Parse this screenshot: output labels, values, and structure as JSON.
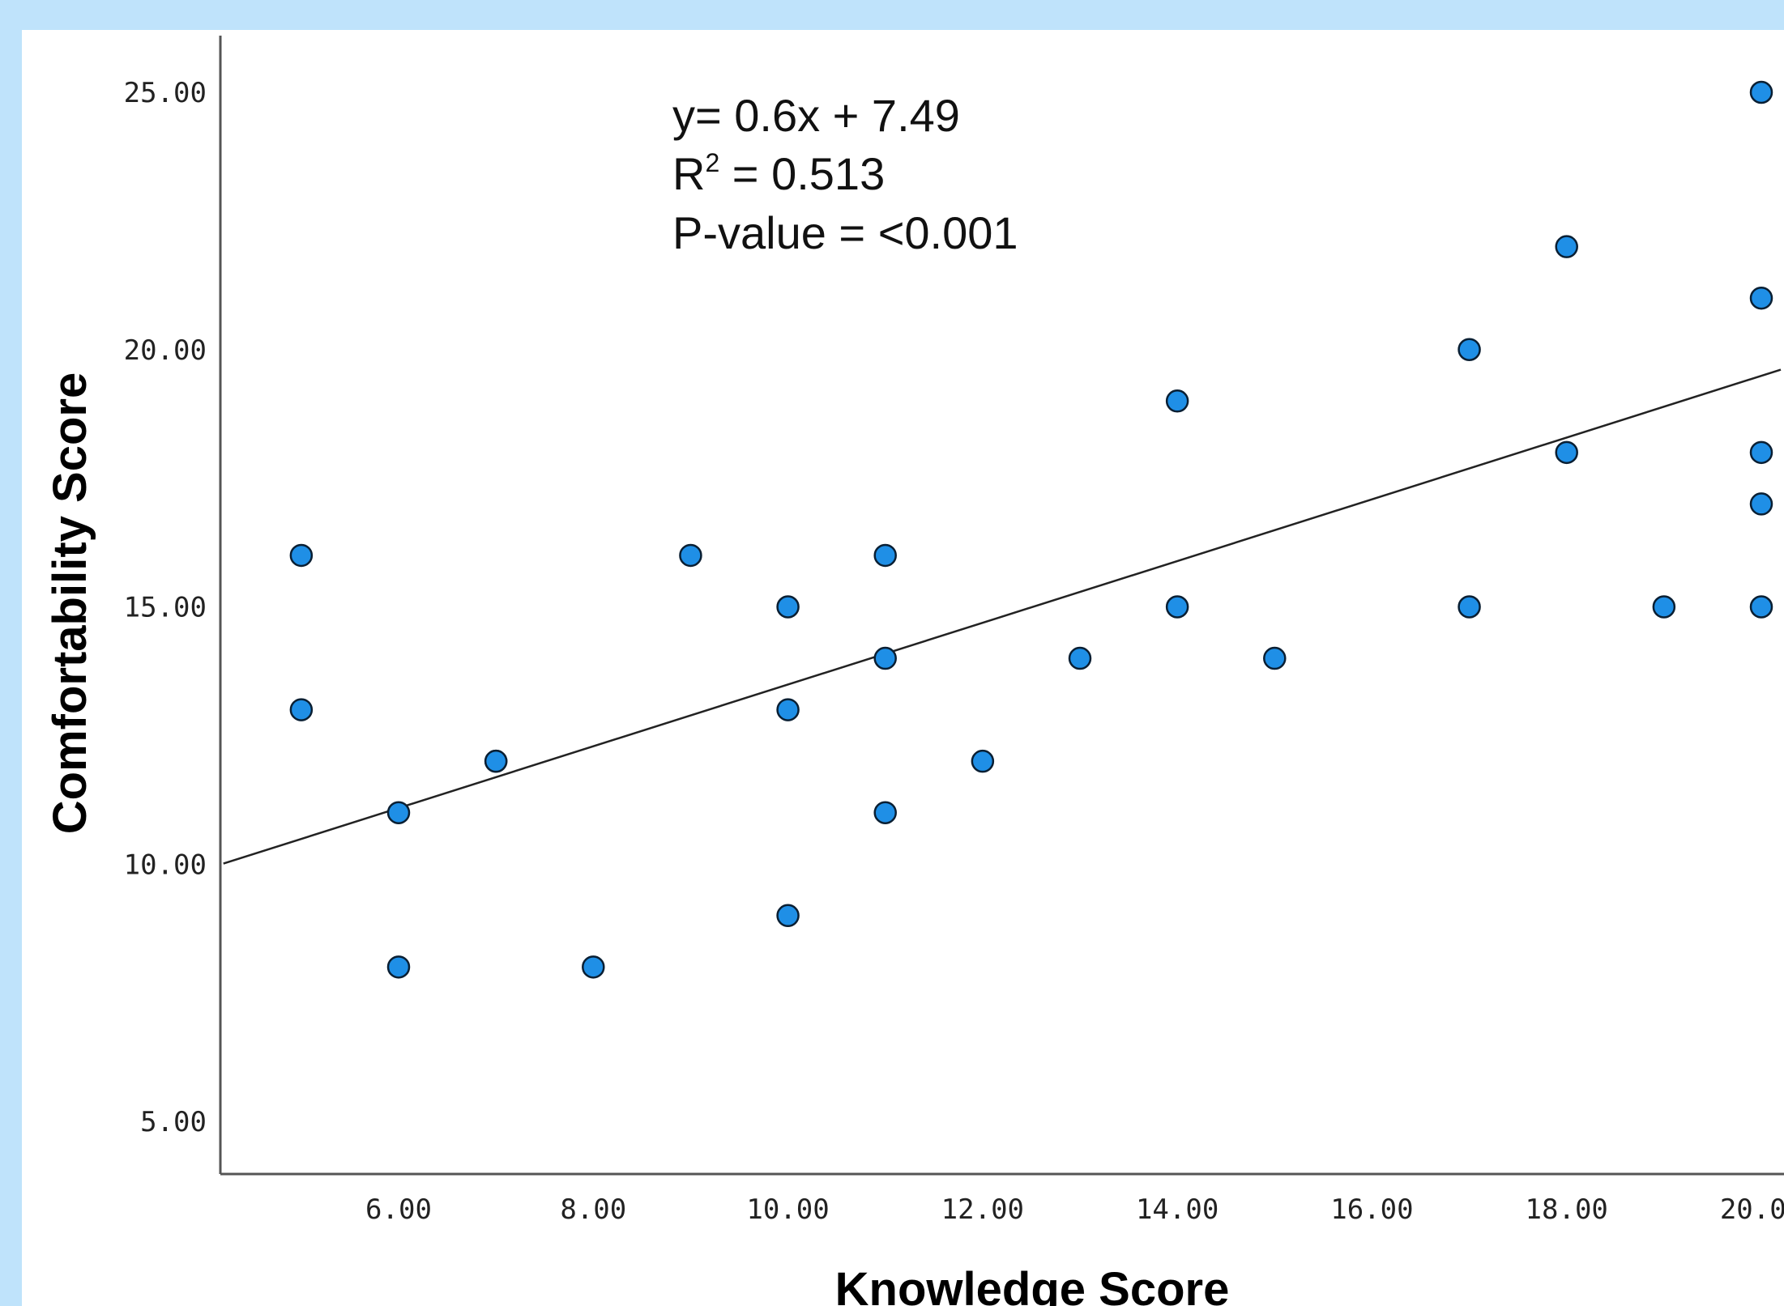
{
  "colors": {
    "page_background": "#bfe3fb",
    "plot_background": "#ffffff",
    "point_fill": "#1f8fe6",
    "point_stroke": "#0a1f33",
    "axis": "#555555",
    "fit_line": "#222222"
  },
  "chart_data": {
    "type": "scatter",
    "title": "",
    "xlabel": "Knowledge Score",
    "ylabel": "Comfortability Score",
    "xlim": [
      4.2,
      20.2
    ],
    "ylim": [
      4.0,
      26.2
    ],
    "x_ticks": [
      "6.00",
      "8.00",
      "10.00",
      "12.00",
      "14.00",
      "16.00",
      "18.00",
      "20.00"
    ],
    "y_ticks": [
      "5.00",
      "10.00",
      "15.00",
      "20.00",
      "25.00"
    ],
    "points": [
      {
        "x": 5,
        "y": 16
      },
      {
        "x": 5,
        "y": 13
      },
      {
        "x": 6,
        "y": 11
      },
      {
        "x": 6,
        "y": 8
      },
      {
        "x": 7,
        "y": 12
      },
      {
        "x": 7,
        "y": 12
      },
      {
        "x": 8,
        "y": 8
      },
      {
        "x": 9,
        "y": 16
      },
      {
        "x": 10,
        "y": 15
      },
      {
        "x": 10,
        "y": 13
      },
      {
        "x": 10,
        "y": 9
      },
      {
        "x": 11,
        "y": 16
      },
      {
        "x": 11,
        "y": 14
      },
      {
        "x": 11,
        "y": 11
      },
      {
        "x": 12,
        "y": 12
      },
      {
        "x": 13,
        "y": 14
      },
      {
        "x": 14,
        "y": 19
      },
      {
        "x": 14,
        "y": 15
      },
      {
        "x": 15,
        "y": 14
      },
      {
        "x": 17,
        "y": 20
      },
      {
        "x": 17,
        "y": 15
      },
      {
        "x": 18,
        "y": 22
      },
      {
        "x": 18,
        "y": 18
      },
      {
        "x": 19,
        "y": 15
      },
      {
        "x": 20,
        "y": 25
      },
      {
        "x": 20,
        "y": 21
      },
      {
        "x": 20,
        "y": 18
      },
      {
        "x": 20,
        "y": 17
      },
      {
        "x": 20,
        "y": 15
      }
    ],
    "fit_line": {
      "slope": 0.6,
      "intercept": 7.49
    },
    "annotation": {
      "equation": "y= 0.6x + 7.49",
      "r_squared_prefix": "R",
      "r_squared_superscript": "2",
      "r_squared_value": " = 0.513",
      "p_value": "P-value = <0.001"
    },
    "grid": false,
    "legend": "none"
  }
}
